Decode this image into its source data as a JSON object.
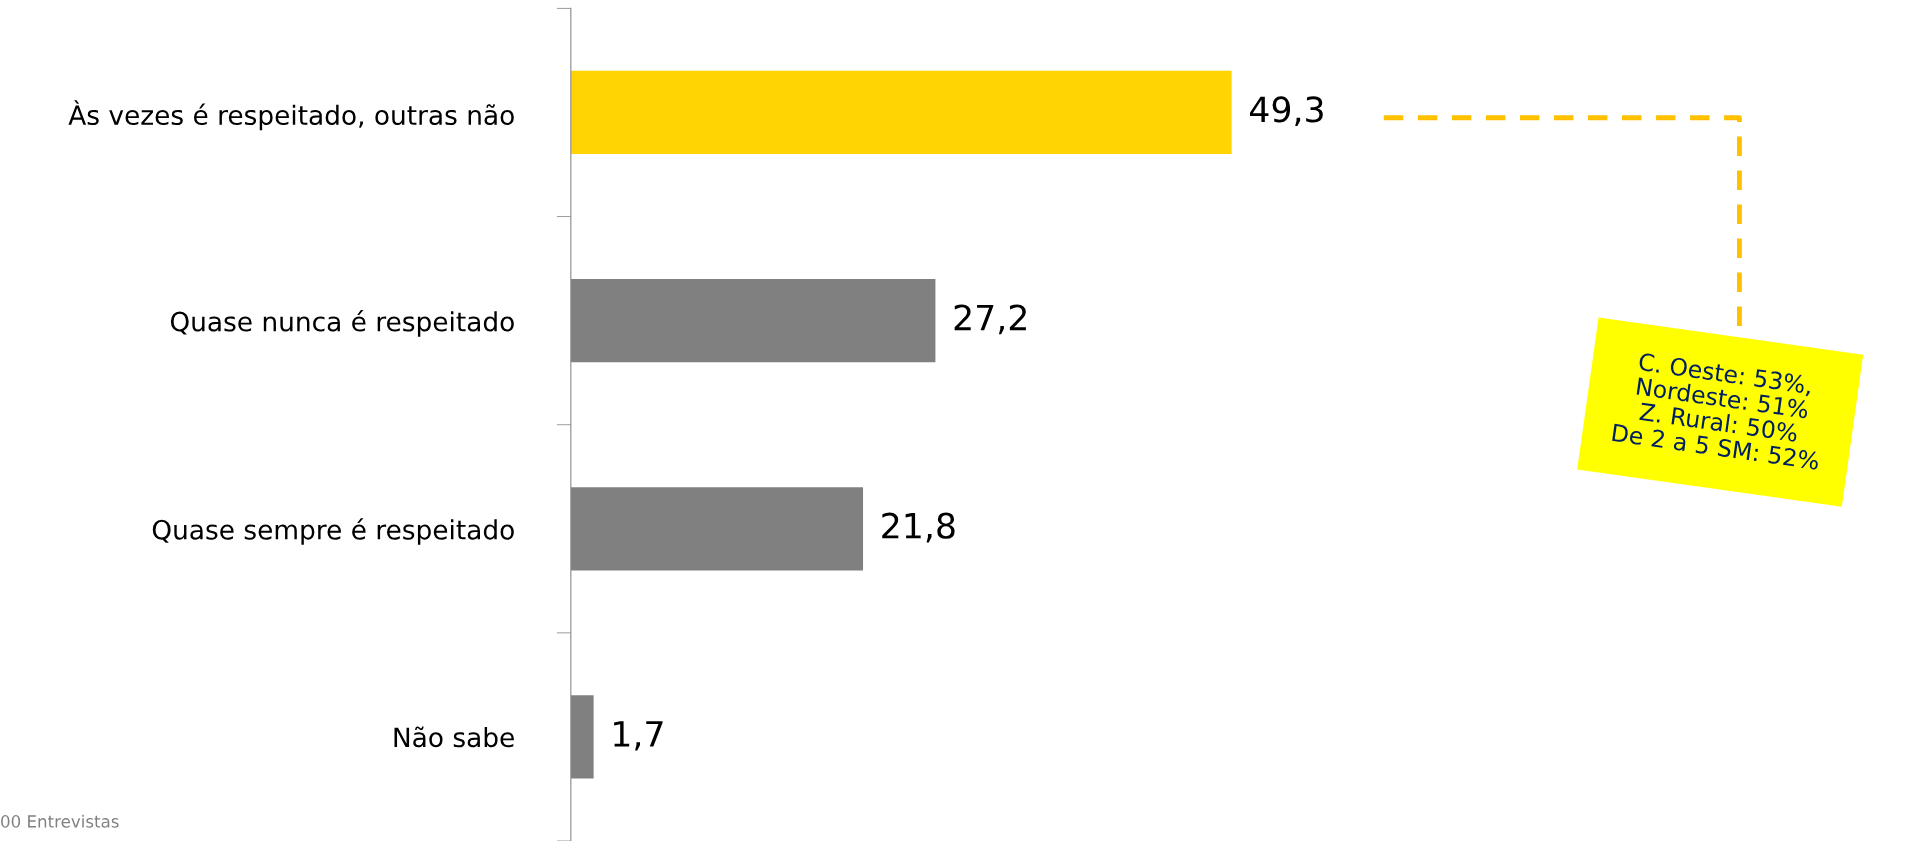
{
  "chart_data": {
    "type": "bar",
    "orientation": "horizontal",
    "categories": [
      "Às vezes é respeitado, outras não",
      "Quase nunca é respeitado",
      "Quase sempre é respeitado",
      "Não sabe"
    ],
    "values": [
      49.3,
      27.2,
      21.8,
      1.7
    ],
    "value_labels": [
      "49,3",
      "27,2",
      "21,8",
      "1,7"
    ],
    "colors": [
      "#ffd400",
      "#808080",
      "#808080",
      "#808080"
    ],
    "grid": false,
    "legend": false,
    "annotations": [
      "C. Oeste: 53%,\nNordeste: 51%\nZ. Rural: 50%\nDe 2 a 5 SM: 52%",
      "00 Entrevistas"
    ]
  }
}
